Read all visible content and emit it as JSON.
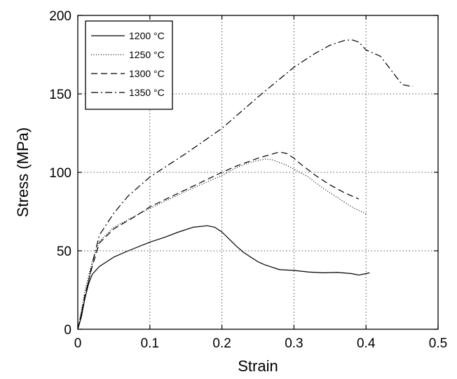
{
  "chart_data": {
    "type": "line",
    "title": "",
    "xlabel": "Strain",
    "ylabel": "Stress (MPa)",
    "xlim": [
      0,
      0.5
    ],
    "ylim": [
      0,
      200
    ],
    "x_ticks": [
      "0",
      "0.1",
      "0.2",
      "0.3",
      "0.4",
      "0.5"
    ],
    "y_ticks": [
      "0",
      "50",
      "100",
      "150",
      "200"
    ],
    "grid": true,
    "legend_position": "top-left",
    "series": [
      {
        "name": "1200 °C",
        "dash": "solid",
        "points": [
          [
            0,
            0
          ],
          [
            0.005,
            8
          ],
          [
            0.01,
            20
          ],
          [
            0.015,
            29
          ],
          [
            0.02,
            35
          ],
          [
            0.03,
            40
          ],
          [
            0.05,
            46
          ],
          [
            0.07,
            50
          ],
          [
            0.1,
            55.5
          ],
          [
            0.12,
            58.5
          ],
          [
            0.14,
            62
          ],
          [
            0.16,
            65
          ],
          [
            0.18,
            66
          ],
          [
            0.19,
            65
          ],
          [
            0.2,
            62
          ],
          [
            0.21,
            57.5
          ],
          [
            0.22,
            53
          ],
          [
            0.23,
            49
          ],
          [
            0.24,
            46
          ],
          [
            0.25,
            43
          ],
          [
            0.26,
            41
          ],
          [
            0.27,
            39.5
          ],
          [
            0.28,
            38
          ],
          [
            0.3,
            37.5
          ],
          [
            0.32,
            36.5
          ],
          [
            0.34,
            36
          ],
          [
            0.36,
            36.2
          ],
          [
            0.38,
            35.5
          ],
          [
            0.39,
            34.5
          ],
          [
            0.4,
            35.5
          ],
          [
            0.405,
            36
          ]
        ]
      },
      {
        "name": "1250 °C",
        "dash": "dotted",
        "points": [
          [
            0,
            0
          ],
          [
            0.005,
            12
          ],
          [
            0.01,
            25
          ],
          [
            0.02,
            43
          ],
          [
            0.03,
            56
          ],
          [
            0.05,
            65
          ],
          [
            0.07,
            70
          ],
          [
            0.1,
            77
          ],
          [
            0.15,
            88
          ],
          [
            0.2,
            98
          ],
          [
            0.22,
            103
          ],
          [
            0.24,
            106.5
          ],
          [
            0.26,
            108.5
          ],
          [
            0.27,
            108
          ],
          [
            0.29,
            104.5
          ],
          [
            0.3,
            102
          ],
          [
            0.32,
            97
          ],
          [
            0.34,
            90
          ],
          [
            0.36,
            84
          ],
          [
            0.38,
            78
          ],
          [
            0.4,
            73.5
          ]
        ]
      },
      {
        "name": "1300 °C",
        "dash": "dashed",
        "points": [
          [
            0,
            0
          ],
          [
            0.005,
            10
          ],
          [
            0.01,
            22
          ],
          [
            0.02,
            40
          ],
          [
            0.03,
            55
          ],
          [
            0.05,
            64
          ],
          [
            0.08,
            72
          ],
          [
            0.1,
            78
          ],
          [
            0.15,
            89
          ],
          [
            0.2,
            100
          ],
          [
            0.22,
            104
          ],
          [
            0.25,
            109
          ],
          [
            0.28,
            113
          ],
          [
            0.29,
            112
          ],
          [
            0.3,
            109
          ],
          [
            0.31,
            105
          ],
          [
            0.33,
            98
          ],
          [
            0.35,
            92
          ],
          [
            0.37,
            87
          ],
          [
            0.39,
            83
          ]
        ]
      },
      {
        "name": "1350 °C",
        "dash": "dashdot",
        "points": [
          [
            0,
            0
          ],
          [
            0.005,
            10
          ],
          [
            0.01,
            20
          ],
          [
            0.02,
            42
          ],
          [
            0.03,
            60
          ],
          [
            0.05,
            74
          ],
          [
            0.07,
            85
          ],
          [
            0.1,
            97
          ],
          [
            0.15,
            112
          ],
          [
            0.2,
            128
          ],
          [
            0.25,
            148
          ],
          [
            0.3,
            167
          ],
          [
            0.33,
            176
          ],
          [
            0.35,
            181
          ],
          [
            0.37,
            184
          ],
          [
            0.38,
            184.5
          ],
          [
            0.39,
            183
          ],
          [
            0.4,
            178
          ],
          [
            0.42,
            174
          ],
          [
            0.44,
            162
          ],
          [
            0.45,
            156
          ],
          [
            0.46,
            155
          ],
          [
            0.465,
            155
          ]
        ]
      }
    ]
  }
}
